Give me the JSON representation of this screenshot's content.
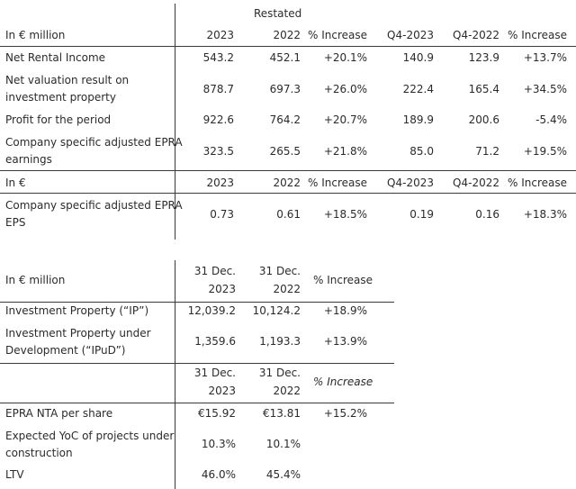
{
  "table1": {
    "restated_label": "Restated",
    "header": {
      "label": "In € million",
      "y2023": "2023",
      "y2022": "2022",
      "pct": "% Increase",
      "q4_2023": "Q4-2023",
      "q4_2022": "Q4-2022",
      "q4_pct": "% Increase"
    },
    "rows": [
      {
        "label": "Net Rental Income",
        "y2023": "543.2",
        "y2022": "452.1",
        "pct": "+20.1%",
        "q4_2023": "140.9",
        "q4_2022": "123.9",
        "q4_pct": "+13.7%"
      },
      {
        "label_line1": "Net valuation result on",
        "label_line2": "investment property",
        "y2023": "878.7",
        "y2022": "697.3",
        "pct": "+26.0%",
        "q4_2023": "222.4",
        "q4_2022": "165.4",
        "q4_pct": "+34.5%"
      },
      {
        "label": "Profit for the period",
        "y2023": "922.6",
        "y2022": "764.2",
        "pct": "+20.7%",
        "q4_2023": "189.9",
        "q4_2022": "200.6",
        "q4_pct": "-5.4%"
      },
      {
        "label_line1": "Company specific adjusted EPRA",
        "label_line2": "earnings",
        "y2023": "323.5",
        "y2022": "265.5",
        "pct": "+21.8%",
        "q4_2023": "85.0",
        "q4_2022": "71.2",
        "q4_pct": "+19.5%"
      }
    ],
    "header2": {
      "label": "In €",
      "y2023": "2023",
      "y2022": "2022",
      "pct": "% Increase",
      "q4_2023": "Q4-2023",
      "q4_2022": "Q4-2022",
      "q4_pct": "% Increase"
    },
    "eps_row": {
      "label_line1": "Company specific adjusted EPRA",
      "label_line2": "EPS",
      "y2023": "0.73",
      "y2022": "0.61",
      "pct": "+18.5%",
      "q4_2023": "0.19",
      "q4_2022": "0.16",
      "q4_pct": "+18.3%"
    }
  },
  "table2": {
    "header": {
      "label": "In € million",
      "d2023_l1": "31 Dec.",
      "d2023_l2": "2023",
      "d2022_l1": "31 Dec.",
      "d2022_l2": "2022",
      "pct": "% Increase"
    },
    "rows": [
      {
        "label": "Investment Property (“IP”)",
        "d2023": "12,039.2",
        "d2022": "10,124.2",
        "pct": "+18.9%"
      },
      {
        "label_line1": "Investment Property under",
        "label_line2": "Development (“IPuD”)",
        "d2023": "1,359.6",
        "d2022": "1,193.3",
        "pct": "+13.9%"
      }
    ],
    "header2": {
      "d2023_l1": "31 Dec.",
      "d2023_l2": "2023",
      "d2022_l1": "31 Dec.",
      "d2022_l2": "2022",
      "pct": "% Increase"
    },
    "rows2": [
      {
        "label": "EPRA NTA per share",
        "d2023": "€15.92",
        "d2022": "€13.81",
        "pct": "+15.2%"
      },
      {
        "label_line1": "Expected YoC of projects under",
        "label_line2": "construction",
        "d2023": "10.3%",
        "d2022": "10.1%"
      },
      {
        "label": "LTV",
        "d2023": "46.0%",
        "d2022": "45.4%"
      }
    ]
  }
}
